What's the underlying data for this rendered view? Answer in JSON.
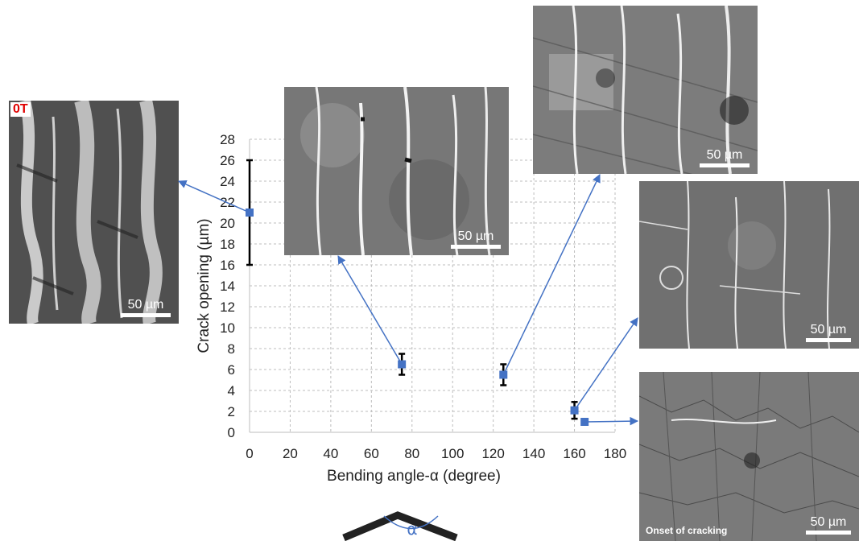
{
  "chart_data": {
    "type": "scatter",
    "xlabel": "Bending angle-α (degree)",
    "ylabel": "Crack opening (µm)",
    "xlim": [
      0,
      180
    ],
    "ylim": [
      0,
      28
    ],
    "x_ticks": [
      "0",
      "20",
      "40",
      "60",
      "80",
      "100",
      "120",
      "140",
      "160",
      "180"
    ],
    "y_ticks": [
      "0",
      "2",
      "4",
      "6",
      "8",
      "10",
      "12",
      "14",
      "16",
      "18",
      "20",
      "22",
      "24",
      "26",
      "28"
    ],
    "grid": "dashed",
    "marker_color": "#4472c4",
    "points": [
      {
        "x": 0,
        "y": 21,
        "err_low": 16,
        "err_high": 26
      },
      {
        "x": 75,
        "y": 6.5,
        "err_low": 5.5,
        "err_high": 7.5
      },
      {
        "x": 125,
        "y": 5.5,
        "err_low": 4.5,
        "err_high": 6.5
      },
      {
        "x": 160,
        "y": 2.1,
        "err_low": 1.3,
        "err_high": 2.9
      },
      {
        "x": 165,
        "y": 1.0
      }
    ],
    "angle_symbol": "α"
  },
  "micrographs": [
    {
      "scale_label": "50 µm",
      "corner_label": "0T"
    },
    {
      "scale_label": "50 µm"
    },
    {
      "scale_label": "50 µm"
    },
    {
      "scale_label": "50 µm"
    },
    {
      "scale_label": "50 µm",
      "caption": "Onset of cracking"
    }
  ]
}
